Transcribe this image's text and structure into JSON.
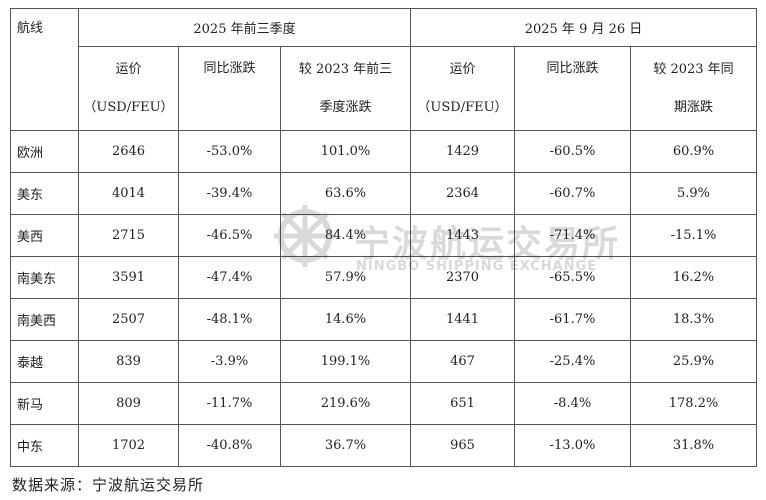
{
  "headers": {
    "route": "航线",
    "period1": "2025 年前三季度",
    "period2": "2025 年 9 月 26 日",
    "freight_line1": "运价",
    "freight_line2": "（USD/FEU）",
    "yoy": "同比涨跌",
    "vs2023_q_line1": "较 2023 年前三",
    "vs2023_q_line2": "季度涨跌",
    "vs2023_p_line1": "较 2023 年同",
    "vs2023_p_line2": "期涨跌"
  },
  "rows": [
    {
      "route": "欧洲",
      "p1_rate": "2646",
      "p1_yoy": "-53.0%",
      "p1_vs2023": "101.0%",
      "p2_rate": "1429",
      "p2_yoy": "-60.5%",
      "p2_vs2023": "60.9%"
    },
    {
      "route": "美东",
      "p1_rate": "4014",
      "p1_yoy": "-39.4%",
      "p1_vs2023": "63.6%",
      "p2_rate": "2364",
      "p2_yoy": "-60.7%",
      "p2_vs2023": "5.9%"
    },
    {
      "route": "美西",
      "p1_rate": "2715",
      "p1_yoy": "-46.5%",
      "p1_vs2023": "84.4%",
      "p2_rate": "1443",
      "p2_yoy": "-71.4%",
      "p2_vs2023": "-15.1%"
    },
    {
      "route": "南美东",
      "p1_rate": "3591",
      "p1_yoy": "-47.4%",
      "p1_vs2023": "57.9%",
      "p2_rate": "2370",
      "p2_yoy": "-65.5%",
      "p2_vs2023": "16.2%"
    },
    {
      "route": "南美西",
      "p1_rate": "2507",
      "p1_yoy": "-48.1%",
      "p1_vs2023": "14.6%",
      "p2_rate": "1441",
      "p2_yoy": "-61.7%",
      "p2_vs2023": "18.3%"
    },
    {
      "route": "泰越",
      "p1_rate": "839",
      "p1_yoy": "-3.9%",
      "p1_vs2023": "199.1%",
      "p2_rate": "467",
      "p2_yoy": "-25.4%",
      "p2_vs2023": "25.9%"
    },
    {
      "route": "新马",
      "p1_rate": "809",
      "p1_yoy": "-11.7%",
      "p1_vs2023": "219.6%",
      "p2_rate": "651",
      "p2_yoy": "-8.4%",
      "p2_vs2023": "178.2%"
    },
    {
      "route": "中东",
      "p1_rate": "1702",
      "p1_yoy": "-40.8%",
      "p1_vs2023": "36.7%",
      "p2_rate": "965",
      "p2_yoy": "-13.0%",
      "p2_vs2023": "31.8%"
    }
  ],
  "watermark": {
    "cn": "宁波航运交易所",
    "en": "NINGBO SHIPPING EXCHANGE"
  },
  "source": "数据来源：宁波航运交易所"
}
